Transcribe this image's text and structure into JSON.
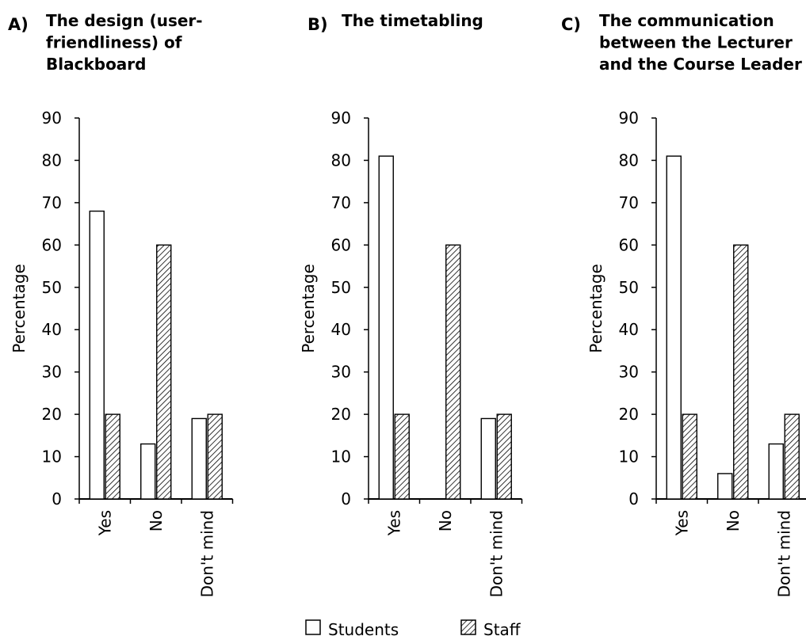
{
  "legend": {
    "students_label": "Students",
    "staff_label": "Staff"
  },
  "colors": {
    "students_fill": "#ffffff",
    "staff_hatch": "#000000",
    "axis": "#000000"
  },
  "chart_data": [
    {
      "type": "bar",
      "letter": "A)",
      "title": [
        "The design (user-",
        "friendliness) of",
        "Blackboard"
      ],
      "ylabel": "Percentage",
      "ylim": [
        0,
        90
      ],
      "yticks": [
        "0",
        "10",
        "20",
        "30",
        "40",
        "50",
        "60",
        "70",
        "80",
        "90"
      ],
      "categories": [
        "Yes",
        "No",
        "Don't mind"
      ],
      "series": [
        {
          "name": "Students",
          "values": [
            68,
            13,
            19
          ]
        },
        {
          "name": "Staff",
          "values": [
            20,
            60,
            20
          ]
        }
      ]
    },
    {
      "type": "bar",
      "letter": "B)",
      "title": [
        "The timetabling"
      ],
      "ylabel": "Percentage",
      "ylim": [
        0,
        90
      ],
      "yticks": [
        "0",
        "10",
        "20",
        "30",
        "40",
        "50",
        "60",
        "70",
        "80",
        "90"
      ],
      "categories": [
        "Yes",
        "No",
        "Don't mind"
      ],
      "series": [
        {
          "name": "Students",
          "values": [
            81,
            0,
            19
          ]
        },
        {
          "name": "Staff",
          "values": [
            20,
            60,
            20
          ]
        }
      ]
    },
    {
      "type": "bar",
      "letter": "C)",
      "title": [
        "The communication",
        "between the Lecturer",
        "and the Course Leader"
      ],
      "ylabel": "Percentage",
      "ylim": [
        0,
        90
      ],
      "yticks": [
        "0",
        "10",
        "20",
        "30",
        "40",
        "50",
        "60",
        "70",
        "80",
        "90"
      ],
      "categories": [
        "Yes",
        "No",
        "Don't mind"
      ],
      "series": [
        {
          "name": "Students",
          "values": [
            81,
            6,
            13
          ]
        },
        {
          "name": "Staff",
          "values": [
            20,
            60,
            20
          ]
        }
      ]
    }
  ]
}
